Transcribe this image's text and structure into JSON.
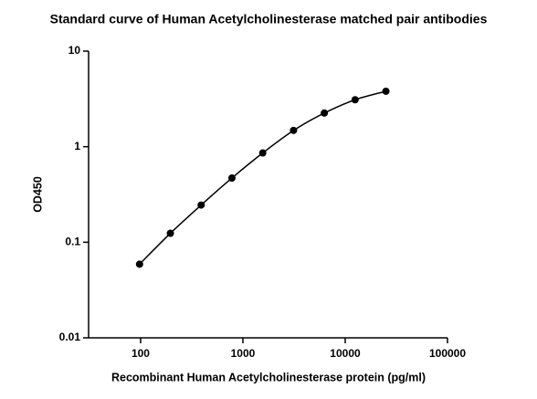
{
  "chart_data": {
    "type": "scatter",
    "title": "Standard curve of Human Acetylcholinesterase matched pair antibodies",
    "x_label": "Recombinant Human Acetylcholinesterase protein (pg/ml)",
    "y_label": "OD450",
    "x_scale": "log",
    "y_scale": "log",
    "xlim": [
      31,
      100000
    ],
    "ylim": [
      0.01,
      10
    ],
    "xticks": [
      100,
      1000,
      10000,
      100000
    ],
    "yticks": [
      0.01,
      0.1,
      1,
      10
    ],
    "color": "#000000",
    "fit_line": true,
    "series": [
      {
        "x": [
          97.66,
          195.3,
          390.6,
          781.25,
          1562.5,
          3125,
          6250,
          12500,
          25000
        ],
        "values": [
          0.059,
          0.124,
          0.245,
          0.47,
          0.86,
          1.48,
          2.25,
          3.1,
          3.8
        ]
      }
    ]
  }
}
